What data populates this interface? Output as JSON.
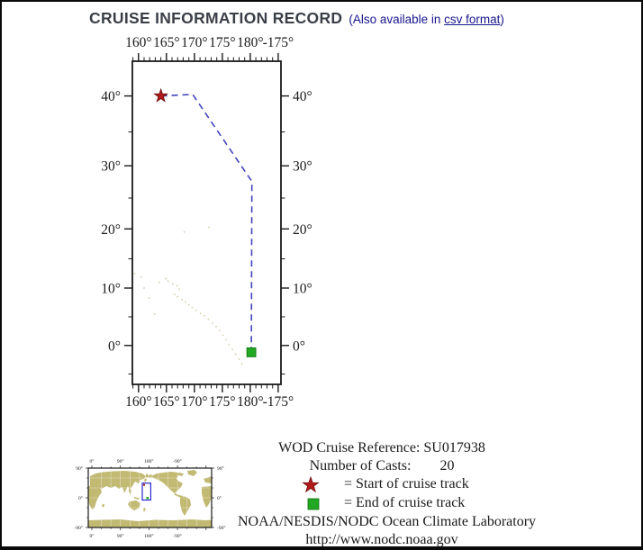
{
  "page": {
    "title": "CRUISE INFORMATION RECORD",
    "subtitle_prefix": "(Also available in ",
    "csv_link": "csv format",
    "subtitle_suffix": ")"
  },
  "info": {
    "cruise_ref_label": "WOD Cruise Reference:",
    "cruise_ref_value": "SU017938",
    "casts_label": "Number of Casts:",
    "casts_value": "20",
    "legend_start": "= Start of cruise track",
    "legend_end": "= End of cruise track",
    "org": "NOAA/NESDIS/NODC Ocean Climate Laboratory",
    "url": "http://www.nodc.noaa.gov"
  },
  "colors": {
    "track": "#4343bd",
    "start_marker": "#b11a1a",
    "start_marker_edge": "#701010",
    "end_marker": "#22a822",
    "end_marker_edge": "#107010",
    "land": "#c2b973",
    "island": "#d2c8a2",
    "region_box": "#2929c8",
    "link": "#16168c",
    "title": "#3a3f47"
  },
  "chart_data": {
    "type": "line",
    "title": "Cruise track map",
    "projection": "mercator",
    "lon_range": [
      158.9,
      185.5
    ],
    "lat_range": [
      -6.8,
      44.5
    ],
    "x_axis": {
      "ticks": [
        "160°",
        "165°",
        "170°",
        "175°",
        "180°",
        "-175°"
      ],
      "lon_values": [
        160,
        165,
        170,
        175,
        180,
        185
      ],
      "minor_step_deg": 1
    },
    "y_axis": {
      "ticks": [
        "40°",
        "30°",
        "20°",
        "10°",
        "0°"
      ],
      "lat_values": [
        40,
        30,
        20,
        10,
        0
      ],
      "minor_lats": [
        35,
        25,
        15,
        5,
        -5
      ]
    },
    "track": [
      [
        164.0,
        40.0
      ],
      [
        169.7,
        40.2
      ],
      [
        180.3,
        27.6
      ],
      [
        180.2,
        -1.2
      ]
    ],
    "start_point": [
      164.0,
      40.0
    ],
    "end_point": [
      180.2,
      -1.2
    ],
    "islands": [
      [
        159.3,
        12.5
      ],
      [
        160.5,
        11.9
      ],
      [
        161.0,
        10.0
      ],
      [
        161.9,
        8.3
      ],
      [
        162.9,
        5.5
      ],
      [
        163.7,
        11.0
      ],
      [
        164.9,
        11.6
      ],
      [
        165.3,
        11.2
      ],
      [
        166.1,
        10.7
      ],
      [
        166.9,
        10.4
      ],
      [
        167.3,
        9.8
      ],
      [
        166.5,
        8.9
      ],
      [
        167.0,
        8.5
      ],
      [
        167.8,
        8.0
      ],
      [
        168.4,
        7.6
      ],
      [
        169.0,
        7.1
      ],
      [
        169.6,
        6.6
      ],
      [
        170.3,
        6.1
      ],
      [
        171.1,
        5.6
      ],
      [
        171.8,
        5.2
      ],
      [
        172.5,
        4.6
      ],
      [
        173.2,
        3.9
      ],
      [
        173.9,
        3.3
      ],
      [
        174.5,
        2.6
      ],
      [
        175.1,
        1.8
      ],
      [
        175.7,
        1.0
      ],
      [
        176.2,
        0.2
      ],
      [
        176.8,
        -0.7
      ],
      [
        177.4,
        -1.5
      ],
      [
        178.0,
        -2.4
      ],
      [
        178.5,
        -3.2
      ],
      [
        168.2,
        19.5
      ],
      [
        172.6,
        20.3
      ]
    ]
  },
  "world_inset": {
    "x_ticks": [
      "0°",
      "90°",
      "180°",
      "-90°"
    ],
    "x_tick_lons": [
      0,
      90,
      180,
      270
    ],
    "y_ticks": [
      "90°",
      "0°",
      "-90°"
    ],
    "y_tick_lats": [
      90,
      0,
      -90
    ],
    "region": [
      158.9,
      185.5,
      -6.8,
      44.5
    ]
  }
}
